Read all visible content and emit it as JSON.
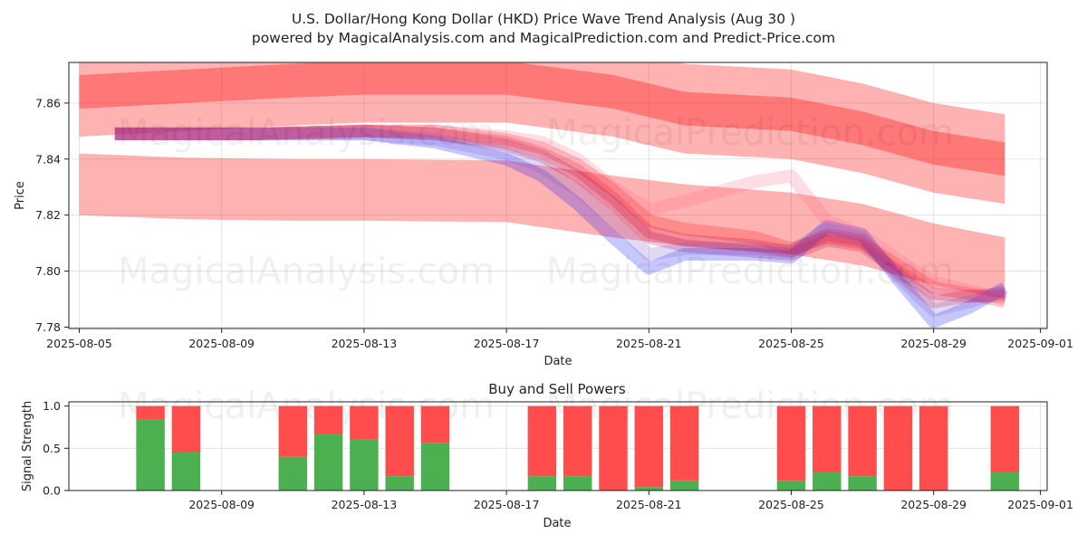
{
  "figure": {
    "title_line1": "U.S. Dollar/Hong Kong Dollar (HKD) Price Wave Trend Analysis (Aug 30 )",
    "title_line2": "powered by MagicalAnalysis.com and MagicalPrediction.com and Predict-Price.com",
    "watermarks": [
      "MagicalAnalysis.com",
      "MagicalPrediction.com"
    ]
  },
  "chart_data": [
    {
      "type": "area",
      "xlabel": "Date",
      "ylabel": "Price",
      "x_ticks": [
        "2025-08-05",
        "2025-08-09",
        "2025-08-13",
        "2025-08-17",
        "2025-08-21",
        "2025-08-25",
        "2025-08-29",
        "2025-09-01"
      ],
      "y_ticks": [
        "7.78",
        "7.80",
        "7.82",
        "7.84",
        "7.86"
      ],
      "xlim": [
        "2025-08-05",
        "2025-09-01"
      ],
      "ylim": [
        7.7795,
        7.8745
      ],
      "grid": true,
      "upper_band": {
        "color": "#ff0000",
        "x": [
          "2025-08-05",
          "2025-08-08",
          "2025-08-11",
          "2025-08-13",
          "2025-08-17",
          "2025-08-20",
          "2025-08-22",
          "2025-08-25",
          "2025-08-27",
          "2025-08-29",
          "2025-08-31"
        ],
        "center": [
          7.864,
          7.866,
          7.868,
          7.869,
          7.869,
          7.864,
          7.858,
          7.856,
          7.851,
          7.844,
          7.84
        ],
        "half_width_core": 0.006,
        "half_width_outer": 0.016
      },
      "lower_band": {
        "color": "#ff0000",
        "x": [
          "2025-08-05",
          "2025-08-08",
          "2025-08-11",
          "2025-08-13",
          "2025-08-17",
          "2025-08-20",
          "2025-08-22",
          "2025-08-25",
          "2025-08-27",
          "2025-08-29",
          "2025-08-31"
        ],
        "center": [
          7.831,
          7.8295,
          7.829,
          7.829,
          7.8285,
          7.823,
          7.82,
          7.817,
          7.813,
          7.806,
          7.801
        ],
        "half_width": 0.011
      },
      "wave_lines": {
        "x": [
          "2025-08-06",
          "2025-08-10",
          "2025-08-13",
          "2025-08-15",
          "2025-08-17",
          "2025-08-18",
          "2025-08-19",
          "2025-08-20",
          "2025-08-21",
          "2025-08-22",
          "2025-08-24",
          "2025-08-25",
          "2025-08-26",
          "2025-08-27",
          "2025-08-28",
          "2025-08-29",
          "2025-08-30",
          "2025-08-31"
        ],
        "series": [
          {
            "color": "#aa0055",
            "values": [
              7.849,
              7.849,
              7.85,
              7.849,
              7.845,
              7.841,
              7.834,
              7.824,
              7.812,
              7.809,
              7.807,
              7.806,
              7.811,
              7.809,
              7.8,
              7.792,
              7.791,
              7.791
            ]
          },
          {
            "color": "#0000ff",
            "values": [
              7.849,
              7.849,
              7.849,
              7.846,
              7.84,
              7.834,
              7.824,
              7.812,
              7.801,
              7.806,
              7.806,
              7.805,
              7.816,
              7.813,
              7.797,
              7.782,
              7.787,
              7.794
            ]
          },
          {
            "color": "#ff0000",
            "values": [
              7.849,
              7.849,
              7.85,
              7.85,
              7.847,
              7.844,
              7.838,
              7.829,
              7.818,
              7.815,
              7.812,
              7.808,
              7.812,
              7.81,
              7.802,
              7.794,
              7.792,
              7.789
            ]
          },
          {
            "color": "#cc0033",
            "values": [
              7.849,
              7.849,
              7.85,
              7.849,
              7.846,
              7.842,
              7.836,
              7.826,
              7.814,
              7.811,
              7.809,
              7.807,
              7.813,
              7.811,
              7.799,
              7.789,
              7.791,
              7.792
            ]
          },
          {
            "color": "#ff6688",
            "values": [
              7.849,
              7.849,
              7.85,
              7.85,
              7.848,
              7.846,
              7.84,
              7.83,
              7.822,
              7.825,
              7.832,
              7.834,
              7.818,
              7.813,
              7.804,
              7.796,
              7.793,
              7.79
            ]
          },
          {
            "color": "#7755cc",
            "values": [
              7.849,
              7.849,
              7.849,
              7.847,
              7.842,
              7.837,
              7.829,
              7.818,
              7.806,
              7.808,
              7.808,
              7.807,
              7.815,
              7.812,
              7.798,
              7.786,
              7.789,
              7.793
            ]
          }
        ]
      }
    },
    {
      "type": "bar",
      "title": "Buy and Sell Powers",
      "xlabel": "Date",
      "ylabel": "Signal Strength",
      "x_ticks": [
        "2025-08-09",
        "2025-08-13",
        "2025-08-17",
        "2025-08-21",
        "2025-08-25",
        "2025-08-29",
        "2025-09-01"
      ],
      "y_ticks": [
        "0.0",
        "0.5",
        "1.0"
      ],
      "ylim": [
        0,
        1.05
      ],
      "grid": true,
      "categories": [
        "2025-08-07",
        "2025-08-08",
        "2025-08-11",
        "2025-08-12",
        "2025-08-13",
        "2025-08-14",
        "2025-08-15",
        "2025-08-18",
        "2025-08-19",
        "2025-08-20",
        "2025-08-21",
        "2025-08-22",
        "2025-08-25",
        "2025-08-26",
        "2025-08-27",
        "2025-08-28",
        "2025-08-29",
        "2025-08-31"
      ],
      "series": [
        {
          "color": "#4caf50",
          "values": [
            0.84,
            0.45,
            0.4,
            0.67,
            0.61,
            0.17,
            0.56,
            0.17,
            0.17,
            0.0,
            0.04,
            0.12,
            0.12,
            0.22,
            0.17,
            0.0,
            0.0,
            0.22
          ]
        },
        {
          "color": "#ff4d4d",
          "values": [
            0.16,
            0.55,
            0.6,
            0.33,
            0.39,
            0.83,
            0.44,
            0.83,
            0.83,
            1.0,
            0.96,
            0.88,
            0.88,
            0.78,
            0.83,
            1.0,
            1.0,
            0.78
          ]
        }
      ]
    }
  ]
}
